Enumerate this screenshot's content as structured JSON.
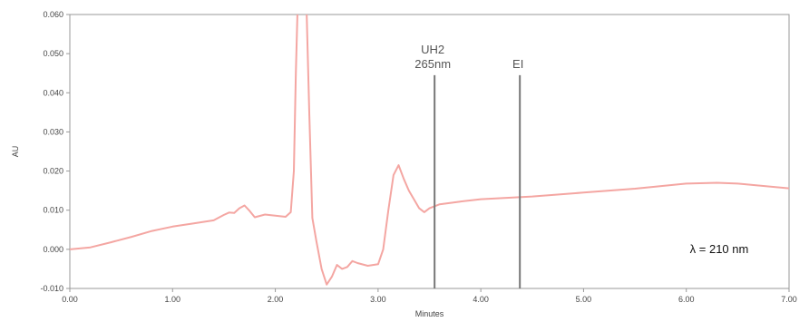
{
  "chart_data": {
    "type": "line",
    "title": "",
    "xlabel": "Minutes",
    "ylabel": "AU",
    "xlim": [
      0,
      7
    ],
    "ylim": [
      -0.01,
      0.06
    ],
    "grid": false,
    "x_ticks": [
      0,
      1,
      2,
      3,
      4,
      5,
      6,
      7
    ],
    "x_tick_labels": [
      "0.00",
      "1.00",
      "2.00",
      "3.00",
      "4.00",
      "5.00",
      "6.00",
      "7.00"
    ],
    "y_ticks": [
      -0.01,
      0,
      0.01,
      0.02,
      0.03,
      0.04,
      0.05,
      0.06
    ],
    "y_tick_labels": [
      "-0.010",
      "0.000",
      "0.010",
      "0.020",
      "0.030",
      "0.040",
      "0.050",
      "0.060"
    ],
    "series": [
      {
        "color": "#f4a6a2",
        "x": [
          0,
          0.2,
          0.4,
          0.6,
          0.8,
          1.0,
          1.2,
          1.4,
          1.5,
          1.55,
          1.6,
          1.65,
          1.7,
          1.75,
          1.8,
          1.9,
          2.0,
          2.1,
          2.15,
          2.18,
          2.2,
          2.22,
          2.25,
          2.3,
          2.33,
          2.36,
          2.4,
          2.45,
          2.5,
          2.55,
          2.6,
          2.65,
          2.7,
          2.75,
          2.8,
          2.9,
          3.0,
          3.05,
          3.1,
          3.15,
          3.2,
          3.25,
          3.3,
          3.4,
          3.45,
          3.5,
          3.6,
          3.8,
          4.0,
          4.5,
          5.0,
          5.5,
          6.0,
          6.3,
          6.5,
          7.0
        ],
        "y": [
          0.0,
          0.0005,
          0.0018,
          0.0032,
          0.0047,
          0.0058,
          0.0066,
          0.0074,
          0.0088,
          0.0094,
          0.0093,
          0.0105,
          0.0112,
          0.0098,
          0.0082,
          0.0089,
          0.0086,
          0.0083,
          0.0095,
          0.02,
          0.045,
          0.065,
          0.065,
          0.065,
          0.035,
          0.008,
          0.002,
          -0.005,
          -0.009,
          -0.007,
          -0.004,
          -0.005,
          -0.0045,
          -0.003,
          -0.0035,
          -0.0042,
          -0.0038,
          0.0,
          0.01,
          0.019,
          0.0215,
          0.018,
          0.015,
          0.0105,
          0.0095,
          0.0105,
          0.0115,
          0.0122,
          0.0128,
          0.0135,
          0.0145,
          0.0155,
          0.0168,
          0.017,
          0.0168,
          0.0156
        ]
      }
    ],
    "markers": [
      {
        "x": 3.55,
        "y_top": 0.0445,
        "label_lines": [
          "UH2",
          "265nm"
        ],
        "color": "#777777"
      },
      {
        "x": 4.38,
        "y_top": 0.0445,
        "label_lines": [
          "EI"
        ],
        "color": "#777777"
      }
    ],
    "annotation": "λ = 210 nm"
  }
}
